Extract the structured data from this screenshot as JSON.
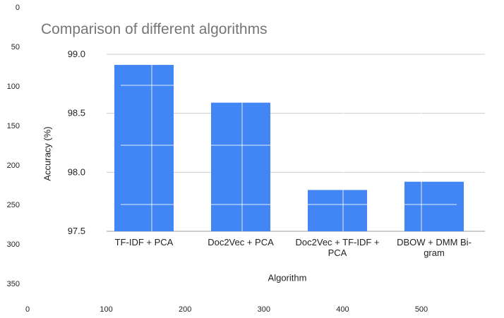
{
  "chart_data": {
    "type": "bar",
    "title": "Comparison of different algorithms",
    "xlabel": "Algorithm",
    "ylabel": "Accuracy (%)",
    "categories": [
      "TF-IDF + PCA",
      "Doc2Vec + PCA",
      "Doc2Vec + TF-IDF + PCA",
      "DBOW + DMM Bi-gram"
    ],
    "values": [
      98.91,
      98.59,
      97.85,
      97.92
    ],
    "ylim": [
      97.5,
      99.0
    ],
    "yticks": [
      "99.0",
      "98.5",
      "98.0",
      "97.5"
    ],
    "bar_color": "#4285f4",
    "grid": true,
    "legend": "none"
  },
  "pixel_axes": {
    "x_ticks": [
      "0",
      "100",
      "200",
      "300",
      "400",
      "500"
    ],
    "y_ticks": [
      "0",
      "50",
      "100",
      "150",
      "200",
      "250",
      "300",
      "350"
    ]
  }
}
